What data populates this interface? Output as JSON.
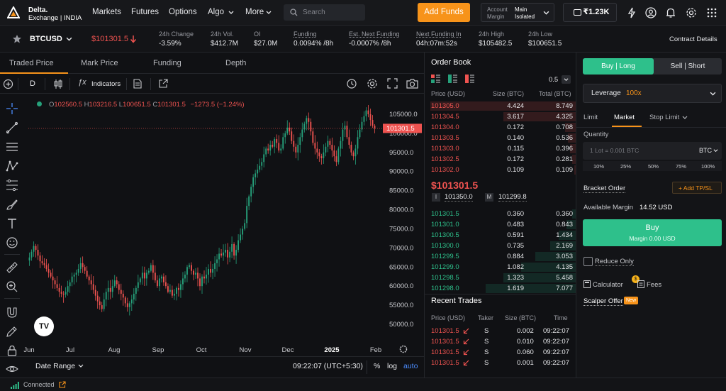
{
  "nav": {
    "logo_line1": "Delta.",
    "logo_line2": "Exchange | INDIA",
    "items": [
      "Markets",
      "Futures",
      "Options",
      "Algo",
      "More"
    ],
    "search_placeholder": "Search",
    "add_funds": "Add Funds",
    "account_label_1": "Account",
    "account_label_2": "Margin",
    "account_value_1": "Main",
    "account_value_2": "Isolated",
    "wallet": "₹1.23K"
  },
  "ticker": {
    "symbol": "BTCUSD",
    "price": "$101301.5",
    "stats": [
      {
        "label": "24h Change",
        "value": "-3.59%",
        "color": "red"
      },
      {
        "label": "24h Vol.",
        "value": "$412.7M"
      },
      {
        "label": "OI",
        "value": "$27.0M"
      },
      {
        "label": "Funding",
        "value": "0.0094% /8h"
      },
      {
        "label": "Est. Next Funding",
        "value": "-0.0007% /8h"
      },
      {
        "label": "Next Funding In",
        "value": "04h:07m:52s"
      },
      {
        "label": "24h High",
        "value": "$105482.5"
      },
      {
        "label": "24h Low",
        "value": "$100651.5"
      }
    ],
    "contract_details": "Contract Details"
  },
  "chart_tabs": [
    "Traded Price",
    "Mark Price",
    "Funding",
    "Depth"
  ],
  "toolbar": {
    "interval": "D",
    "indicators": "Indicators"
  },
  "legend": {
    "o_label": "O",
    "o": "102560.5",
    "h_label": "H",
    "h": "103216.5",
    "l_label": "L",
    "l": "100651.5",
    "c_label": "C",
    "c": "101301.5",
    "change": "−1273.5 (−1.24%)"
  },
  "chart_data": {
    "type": "candlestick",
    "y_ticks": [
      105000,
      100000,
      95000,
      90000,
      85000,
      80000,
      75000,
      70000,
      65000,
      60000,
      55000,
      50000
    ],
    "y_tick_labels": [
      "105000.0",
      "100000.0",
      "95000.0",
      "90000.0",
      "85000.0",
      "80000.0",
      "75000.0",
      "70000.0",
      "65000.0",
      "60000.0",
      "55000.0",
      "50000.0"
    ],
    "ylim": [
      47000,
      110000
    ],
    "x_ticks": [
      "Jun",
      "Jul",
      "Aug",
      "Sep",
      "Oct",
      "Nov",
      "Dec",
      "2025",
      "Feb"
    ],
    "last_price": 101301.5,
    "last_price_label": "101301.5",
    "series_close": [
      67500,
      69000,
      70500,
      69500,
      68000,
      66500,
      66000,
      65500,
      64500,
      63500,
      62500,
      61500,
      60500,
      59500,
      58500,
      58000,
      57800,
      58500,
      60000,
      61000,
      62500,
      63000,
      63500,
      64500,
      66000,
      65000,
      64000,
      62500,
      61500,
      60500,
      59000,
      57500,
      56000,
      55000,
      54000,
      56500,
      58500,
      59500,
      58500,
      60000,
      61500,
      60500,
      59000,
      58000,
      57000,
      55500,
      54500,
      55500,
      56500,
      58000,
      59500,
      61000,
      62000,
      63500,
      62000,
      63500,
      64000,
      65500,
      63500,
      61500,
      60000,
      62000,
      62500,
      61000,
      60000,
      58500,
      59000,
      57500,
      58000,
      59500,
      59000,
      60500,
      62000,
      63000,
      65000,
      65500,
      64000,
      63000,
      63500,
      62000,
      60000,
      62500,
      62000,
      63000,
      64500,
      63500,
      64500,
      66000,
      67000,
      68500,
      68000,
      68800,
      69500,
      67500,
      69000,
      71000,
      68000,
      69500,
      72000,
      73500,
      75000,
      76500,
      81000,
      83500,
      86000,
      88500,
      89500,
      90500,
      91500,
      92500,
      94500,
      96000,
      95500,
      97000,
      96500,
      98500,
      97500,
      95500,
      96000,
      99000,
      100000,
      101500,
      100500,
      98000,
      96500,
      95000,
      97000,
      99000,
      101000,
      102500,
      104000,
      103000,
      100500,
      97500,
      96000,
      95000,
      94000,
      93500,
      95000,
      96500,
      98000,
      97000,
      95500,
      94000,
      92500,
      96000,
      98000,
      101000,
      102000,
      99000,
      97000,
      95000,
      94000,
      96000,
      99000,
      101000,
      103000,
      104500,
      106000,
      105000,
      103500,
      102000,
      101300
    ]
  },
  "chart_footer": {
    "date_range": "Date Range",
    "time": "09:22:07 (UTC+5:30)",
    "pct": "%",
    "log": "log",
    "auto": "auto"
  },
  "orderbook": {
    "title": "Order Book",
    "precision": "0.5",
    "headers": [
      "Price (USD)",
      "Size (BTC)",
      "Total (BTC)"
    ],
    "asks": [
      [
        "101305.0",
        "4.424",
        "8.749"
      ],
      [
        "101304.5",
        "3.617",
        "4.325"
      ],
      [
        "101304.0",
        "0.172",
        "0.708"
      ],
      [
        "101303.5",
        "0.140",
        "0.536"
      ],
      [
        "101303.0",
        "0.115",
        "0.396"
      ],
      [
        "101302.5",
        "0.172",
        "0.281"
      ],
      [
        "101302.0",
        "0.109",
        "0.109"
      ]
    ],
    "ask_depth": [
      1.0,
      0.5,
      0.08,
      0.06,
      0.045,
      0.03,
      0.015
    ],
    "last": "$101301.5",
    "index_label": "I",
    "index": "101350.0",
    "mark_label": "M",
    "mark": "101299.8",
    "bids": [
      [
        "101301.5",
        "0.360",
        "0.360"
      ],
      [
        "101301.0",
        "0.483",
        "0.843"
      ],
      [
        "101300.5",
        "0.591",
        "1.434"
      ],
      [
        "101300.0",
        "0.735",
        "2.169"
      ],
      [
        "101299.5",
        "0.884",
        "3.053"
      ],
      [
        "101299.0",
        "1.082",
        "4.135"
      ],
      [
        "101298.5",
        "1.323",
        "5.458"
      ],
      [
        "101298.0",
        "1.619",
        "7.077"
      ]
    ],
    "bid_depth": [
      0.03,
      0.07,
      0.12,
      0.18,
      0.28,
      0.38,
      0.5,
      0.62
    ]
  },
  "recent_trades": {
    "title": "Recent Trades",
    "headers": [
      "Price (USD)",
      "Taker",
      "Size (BTC)",
      "Time"
    ],
    "rows": [
      [
        "101301.5",
        "S",
        "0.002",
        "09:22:07"
      ],
      [
        "101301.5",
        "S",
        "0.010",
        "09:22:07"
      ],
      [
        "101301.5",
        "S",
        "0.060",
        "09:22:07"
      ],
      [
        "101301.5",
        "S",
        "0.001",
        "09:22:07"
      ]
    ]
  },
  "order_form": {
    "buy_tab": "Buy | Long",
    "sell_tab": "Sell | Short",
    "leverage_label": "Leverage",
    "leverage_value": "100x",
    "types": [
      "Limit",
      "Market",
      "Stop Limit"
    ],
    "quantity_label": "Quantity",
    "quantity_placeholder": "1 Lot = 0.001 BTC",
    "quantity_unit": "BTC",
    "pcts": [
      "10%",
      "25%",
      "50%",
      "75%",
      "100%"
    ],
    "bracket": "Bracket Order",
    "add_tpsl": "+ Add TP/SL",
    "available_margin_label": "Available Margin",
    "available_margin": "14.52 USD",
    "buy_button": "Buy",
    "buy_margin": "Margin 0.00 USD",
    "reduce_only": "Reduce Only",
    "calculator": "Calculator",
    "fees": "Fees",
    "fees_badge": "$",
    "scalper": "Scalper Offer",
    "scalper_badge": "New"
  },
  "status": {
    "connected": "Connected"
  }
}
